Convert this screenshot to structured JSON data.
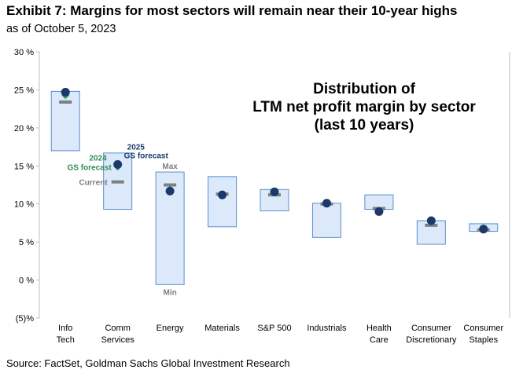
{
  "header": {
    "title": "Exhibit 7: Margins for most sectors will remain near their 10-year highs",
    "subtitle": "as of October 5, 2023"
  },
  "footer": {
    "source": "Source: FactSet, Goldman Sachs Global Investment Research"
  },
  "colors": {
    "box_fill": "#dbe9fb",
    "box_stroke": "#5b8fd1",
    "marker_2025": "#1b3a6b",
    "marker_2024": "#2e9e6a",
    "current_bar": "#7f7f7f",
    "label_2025": "#1b3a6b",
    "label_2024": "#2e8b57",
    "label_gray": "#7f7f7f",
    "axis": "#bfbfbf"
  },
  "chart_data": {
    "type": "range-box",
    "title_lines": [
      "Distribution of",
      "LTM net profit margin by sector",
      "(last 10 years)"
    ],
    "categories": [
      {
        "lines": [
          "Info",
          "Tech"
        ]
      },
      {
        "lines": [
          "Comm",
          "Services"
        ]
      },
      {
        "lines": [
          "Energy"
        ]
      },
      {
        "lines": [
          "Materials"
        ]
      },
      {
        "lines": [
          "S&P 500"
        ]
      },
      {
        "lines": [
          "Industrials"
        ]
      },
      {
        "lines": [
          "Health",
          "Care"
        ]
      },
      {
        "lines": [
          "Consumer",
          "Discretionary"
        ]
      },
      {
        "lines": [
          "Consumer",
          "Staples"
        ]
      }
    ],
    "ylim": [
      -5,
      30
    ],
    "yticks": [
      {
        "value": 30,
        "label": "30 %"
      },
      {
        "value": 25,
        "label": "25 %"
      },
      {
        "value": 20,
        "label": "20 %"
      },
      {
        "value": 15,
        "label": "15 %"
      },
      {
        "value": 10,
        "label": "10 %"
      },
      {
        "value": 5,
        "label": "5 %"
      },
      {
        "value": 0,
        "label": "0 %"
      },
      {
        "value": -5,
        "label": "(5)%"
      }
    ],
    "series": [
      {
        "name": "10-year max",
        "values": [
          24.8,
          16.7,
          14.2,
          13.6,
          11.9,
          10.1,
          11.2,
          7.8,
          7.4
        ]
      },
      {
        "name": "10-year min",
        "values": [
          17.0,
          9.3,
          -0.6,
          7.0,
          9.1,
          5.6,
          9.3,
          4.7,
          6.4
        ]
      },
      {
        "name": "Current",
        "values": [
          23.4,
          12.9,
          12.5,
          11.3,
          11.2,
          10.0,
          9.4,
          7.2,
          6.6
        ]
      },
      {
        "name": "2024 GS forecast",
        "values": [
          24.3,
          14.9,
          11.9,
          11.1,
          11.5,
          10.1,
          9.1,
          7.7,
          6.7
        ]
      },
      {
        "name": "2025 GS forecast",
        "values": [
          24.7,
          15.2,
          11.7,
          11.2,
          11.6,
          10.1,
          9.0,
          7.8,
          6.7
        ]
      }
    ],
    "annotations": {
      "label_2025_lines": [
        "2025",
        "GS forecast"
      ],
      "label_2024_lines": [
        "2024",
        "GS forecast"
      ],
      "label_current": "Current",
      "label_max": "Max",
      "label_min": "Min"
    }
  }
}
